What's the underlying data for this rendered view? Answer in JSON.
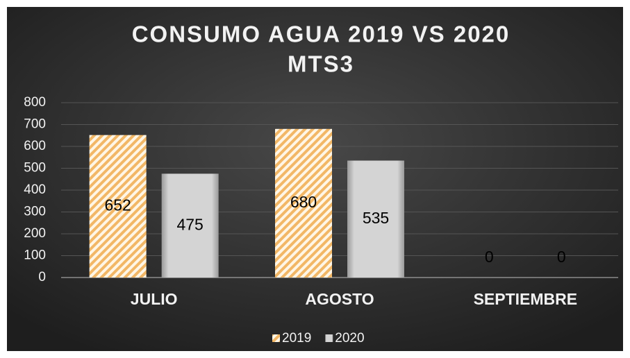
{
  "chart_data": {
    "type": "bar",
    "title": "CONSUMO AGUA 2019 VS 2020",
    "subtitle": "MTS3",
    "categories": [
      "JULIO",
      "AGOSTO",
      "SEPTIEMBRE"
    ],
    "series": [
      {
        "name": "2019",
        "color": "#f2b766",
        "values": [
          652,
          680,
          0
        ]
      },
      {
        "name": "2020",
        "color": "#d4d4d4",
        "values": [
          475,
          535,
          0
        ]
      }
    ],
    "ylim": [
      0,
      800
    ],
    "yticks": [
      0,
      100,
      200,
      300,
      400,
      500,
      600,
      700,
      800
    ],
    "grid": true,
    "legend": "bottom"
  }
}
